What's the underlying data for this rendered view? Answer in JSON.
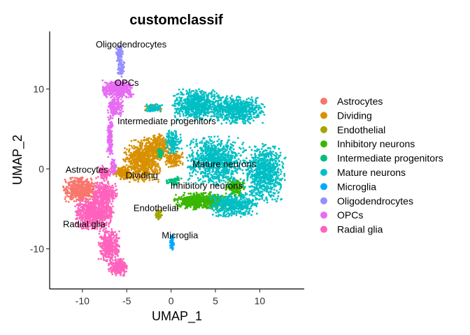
{
  "chart_data": {
    "type": "scatter",
    "title": "customclassif",
    "xlabel": "UMAP_1",
    "ylabel": "UMAP_2",
    "xlim": [
      -14,
      15
    ],
    "ylim": [
      -15,
      17
    ],
    "xticks": [
      -10,
      -5,
      0,
      5,
      10
    ],
    "xtick_labels": [
      "-10",
      "-5",
      "0",
      "5",
      "10"
    ],
    "yticks": [
      -10,
      0,
      10
    ],
    "ytick_labels": [
      "-10",
      "0",
      "10"
    ],
    "grid": false,
    "legend_position": "right",
    "clusters": [
      {
        "name": "Astrocytes",
        "color": "#F8766D",
        "label_pos": [
          -9.5,
          -0.5
        ],
        "blobs": [
          {
            "c": [
              -10.3,
              -2.6
            ],
            "r": [
              1.7,
              1.4
            ],
            "n": 520
          }
        ]
      },
      {
        "name": "Dividing",
        "color": "#D89000",
        "label_pos": [
          -3.3,
          -1.2
        ],
        "blobs": [
          {
            "c": [
              -3.2,
              1.0
            ],
            "r": [
              2.0,
              2.4
            ],
            "n": 700
          },
          {
            "c": [
              -1.5,
              2.8
            ],
            "r": [
              1.4,
              1.5
            ],
            "n": 300
          },
          {
            "c": [
              -5.5,
              -0.5
            ],
            "r": [
              1.0,
              0.8
            ],
            "n": 160
          },
          {
            "c": [
              0.3,
              1.2
            ],
            "r": [
              1.0,
              0.9
            ],
            "n": 140
          },
          {
            "c": [
              -2.0,
              7.6
            ],
            "r": [
              0.9,
              0.4
            ],
            "n": 60
          }
        ]
      },
      {
        "name": "Endothelial",
        "color": "#A3A500",
        "label_pos": [
          -1.7,
          -5.3
        ],
        "blobs": [
          {
            "c": [
              -1.4,
              -5.7
            ],
            "r": [
              0.35,
              0.6
            ],
            "n": 70
          }
        ]
      },
      {
        "name": "Inhibitory neurons",
        "color": "#39B600",
        "label_pos": [
          4.0,
          -2.5
        ],
        "blobs": [
          {
            "c": [
              3.5,
              -4.0
            ],
            "r": [
              3.0,
              1.0
            ],
            "n": 600
          },
          {
            "c": [
              7.2,
              -2.3
            ],
            "r": [
              1.0,
              1.1
            ],
            "n": 160
          }
        ]
      },
      {
        "name": "Intermediate progenitors",
        "color": "#00BF7D",
        "label_pos": [
          -0.5,
          5.6
        ],
        "blobs": [
          {
            "c": [
              -1.2,
              2.0
            ],
            "r": [
              0.3,
              0.6
            ],
            "n": 40
          },
          {
            "c": [
              0.3,
              -1.5
            ],
            "r": [
              0.8,
              0.6
            ],
            "n": 60
          }
        ]
      },
      {
        "name": "Mature neurons",
        "color": "#00BFC4",
        "label_pos": [
          6.0,
          0.2
        ],
        "blobs": [
          {
            "c": [
              3.0,
              8.0
            ],
            "r": [
              2.6,
              1.8
            ],
            "n": 700
          },
          {
            "c": [
              7.5,
              7.4
            ],
            "r": [
              2.8,
              1.6
            ],
            "n": 650
          },
          {
            "c": [
              -2.0,
              7.6
            ],
            "r": [
              1.0,
              0.5
            ],
            "n": 80
          },
          {
            "c": [
              5.0,
              1.0
            ],
            "r": [
              3.0,
              2.8
            ],
            "n": 900
          },
          {
            "c": [
              10.5,
              -0.5
            ],
            "r": [
              2.2,
              3.4
            ],
            "n": 800
          },
          {
            "c": [
              7.0,
              -4.5
            ],
            "r": [
              2.5,
              1.4
            ],
            "n": 450
          },
          {
            "c": [
              0.3,
              3.3
            ],
            "r": [
              0.9,
              1.4
            ],
            "n": 150
          }
        ]
      },
      {
        "name": "Microglia",
        "color": "#00A9FF",
        "label_pos": [
          1.0,
          -8.7
        ],
        "blobs": [
          {
            "c": [
              0.1,
              -9.3
            ],
            "r": [
              0.25,
              0.9
            ],
            "n": 60
          }
        ]
      },
      {
        "name": "Oligodendrocytes",
        "color": "#9590FF",
        "label_pos": [
          -4.5,
          15.2
        ],
        "blobs": [
          {
            "c": [
              -5.8,
              14.3
            ],
            "r": [
              0.35,
              1.1
            ],
            "n": 100
          },
          {
            "c": [
              -5.6,
              12.5
            ],
            "r": [
              0.4,
              0.9
            ],
            "n": 60
          }
        ]
      },
      {
        "name": "OPCs",
        "color": "#E76BF3",
        "label_pos": [
          -5.0,
          10.4
        ],
        "blobs": [
          {
            "c": [
              -6.0,
              10.0
            ],
            "r": [
              1.6,
              1.0
            ],
            "n": 450
          },
          {
            "c": [
              -6.3,
              7.8
            ],
            "r": [
              0.8,
              1.2
            ],
            "n": 180
          },
          {
            "c": [
              -6.9,
              4.0
            ],
            "r": [
              0.3,
              2.6
            ],
            "n": 140
          },
          {
            "c": [
              -6.5,
              0.3
            ],
            "r": [
              0.35,
              1.0
            ],
            "n": 60
          }
        ]
      },
      {
        "name": "Radial glia",
        "color": "#FF62BC",
        "label_pos": [
          -9.8,
          -7.3
        ],
        "blobs": [
          {
            "c": [
              -8.6,
              -5.6
            ],
            "r": [
              2.0,
              1.8
            ],
            "n": 800
          },
          {
            "c": [
              -7.5,
              -3.0
            ],
            "r": [
              1.3,
              1.3
            ],
            "n": 300
          },
          {
            "c": [
              -7.0,
              -9.5
            ],
            "r": [
              1.1,
              1.9
            ],
            "n": 380
          },
          {
            "c": [
              -6.0,
              -12.3
            ],
            "r": [
              1.0,
              1.0
            ],
            "n": 220
          },
          {
            "c": [
              -7.5,
              -0.5
            ],
            "r": [
              0.7,
              1.0
            ],
            "n": 90
          }
        ]
      }
    ]
  }
}
